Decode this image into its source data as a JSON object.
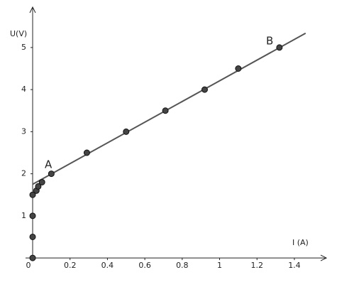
{
  "chart_data": {
    "type": "scatter",
    "x_label": "I (A)",
    "y_label": "U(V)",
    "points": {
      "color": "#444444",
      "x": [
        0,
        0,
        0,
        0,
        0.02,
        0.03,
        0.05,
        0.1,
        0.29,
        0.5,
        0.71,
        0.92,
        1.1,
        1.32
      ],
      "y": [
        0,
        0.5,
        1,
        1.5,
        1.6,
        1.7,
        1.8,
        2,
        2.5,
        3,
        3.5,
        4,
        4.5,
        5
      ]
    },
    "fit_line": {
      "color": "#555555",
      "x": [
        0,
        1.46
      ],
      "y": [
        1.75,
        5.34
      ]
    },
    "annotations": [
      "A",
      "B"
    ],
    "xlim": [
      -0.038,
      1.571
    ],
    "ylim": [
      -0.15,
      5.96
    ],
    "xticks": [
      0,
      0.2,
      0.4,
      0.6,
      0.8,
      1,
      1.2,
      1.4
    ],
    "yticks": [
      1,
      2,
      3,
      4,
      5
    ]
  }
}
